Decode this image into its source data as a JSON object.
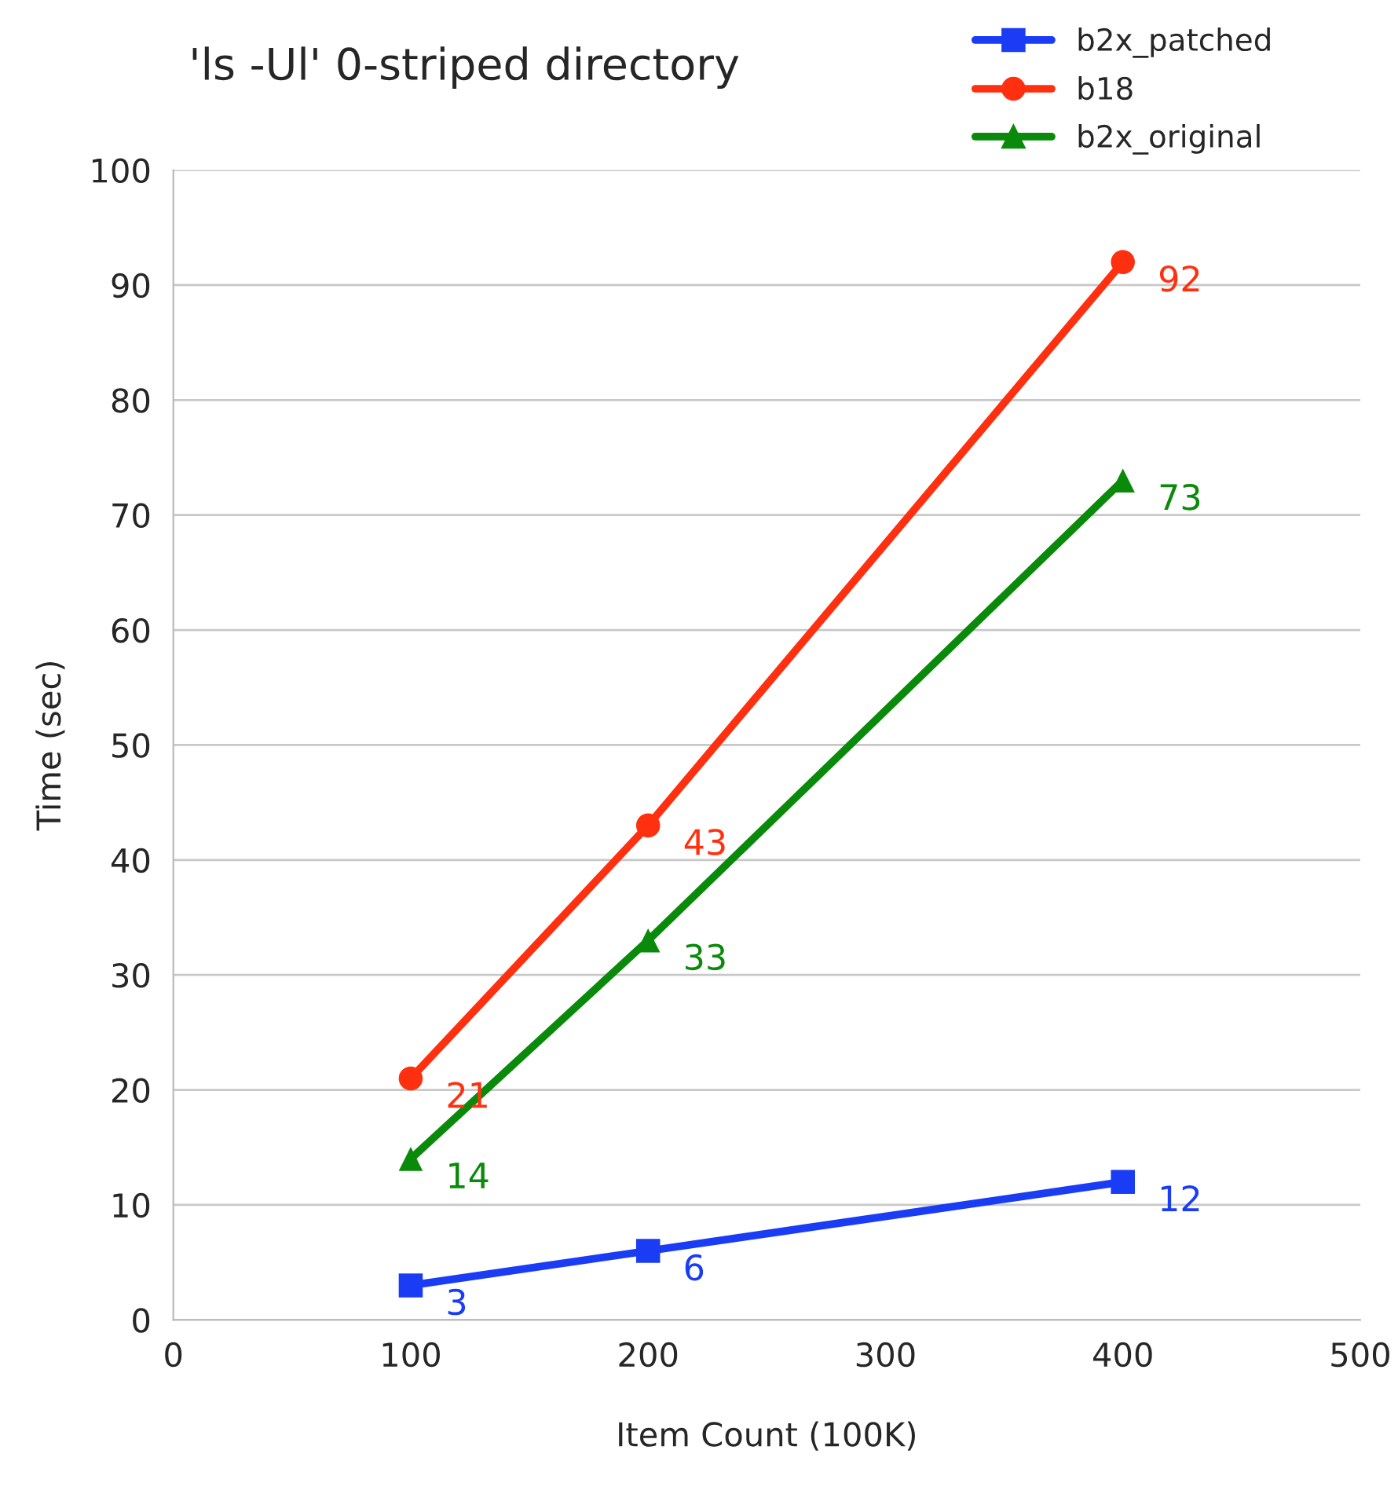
{
  "chart_data": {
    "type": "line",
    "title": "'ls -Ul' 0-striped directory",
    "xlabel": "Item Count (100K)",
    "ylabel": "Time (sec)",
    "x": [
      100,
      200,
      400
    ],
    "series": [
      {
        "name": "b2x_patched",
        "color": "#1a3cf5",
        "marker": "square",
        "values": [
          3,
          6,
          12
        ]
      },
      {
        "name": "b18",
        "color": "#ff3010",
        "marker": "circle",
        "values": [
          21,
          43,
          92
        ]
      },
      {
        "name": "b2x_original",
        "color": "#0a8a0a",
        "marker": "triangle",
        "values": [
          14,
          33,
          73
        ]
      }
    ],
    "xlim": [
      0,
      500
    ],
    "xticks": [
      0,
      100,
      200,
      300,
      400,
      500
    ],
    "ylim": [
      0,
      100
    ],
    "yticks": [
      0,
      10,
      20,
      30,
      40,
      50,
      60,
      70,
      80,
      90,
      100
    ],
    "grid": "y",
    "legend": "top right",
    "data_labels": true,
    "line_style": "solid"
  }
}
